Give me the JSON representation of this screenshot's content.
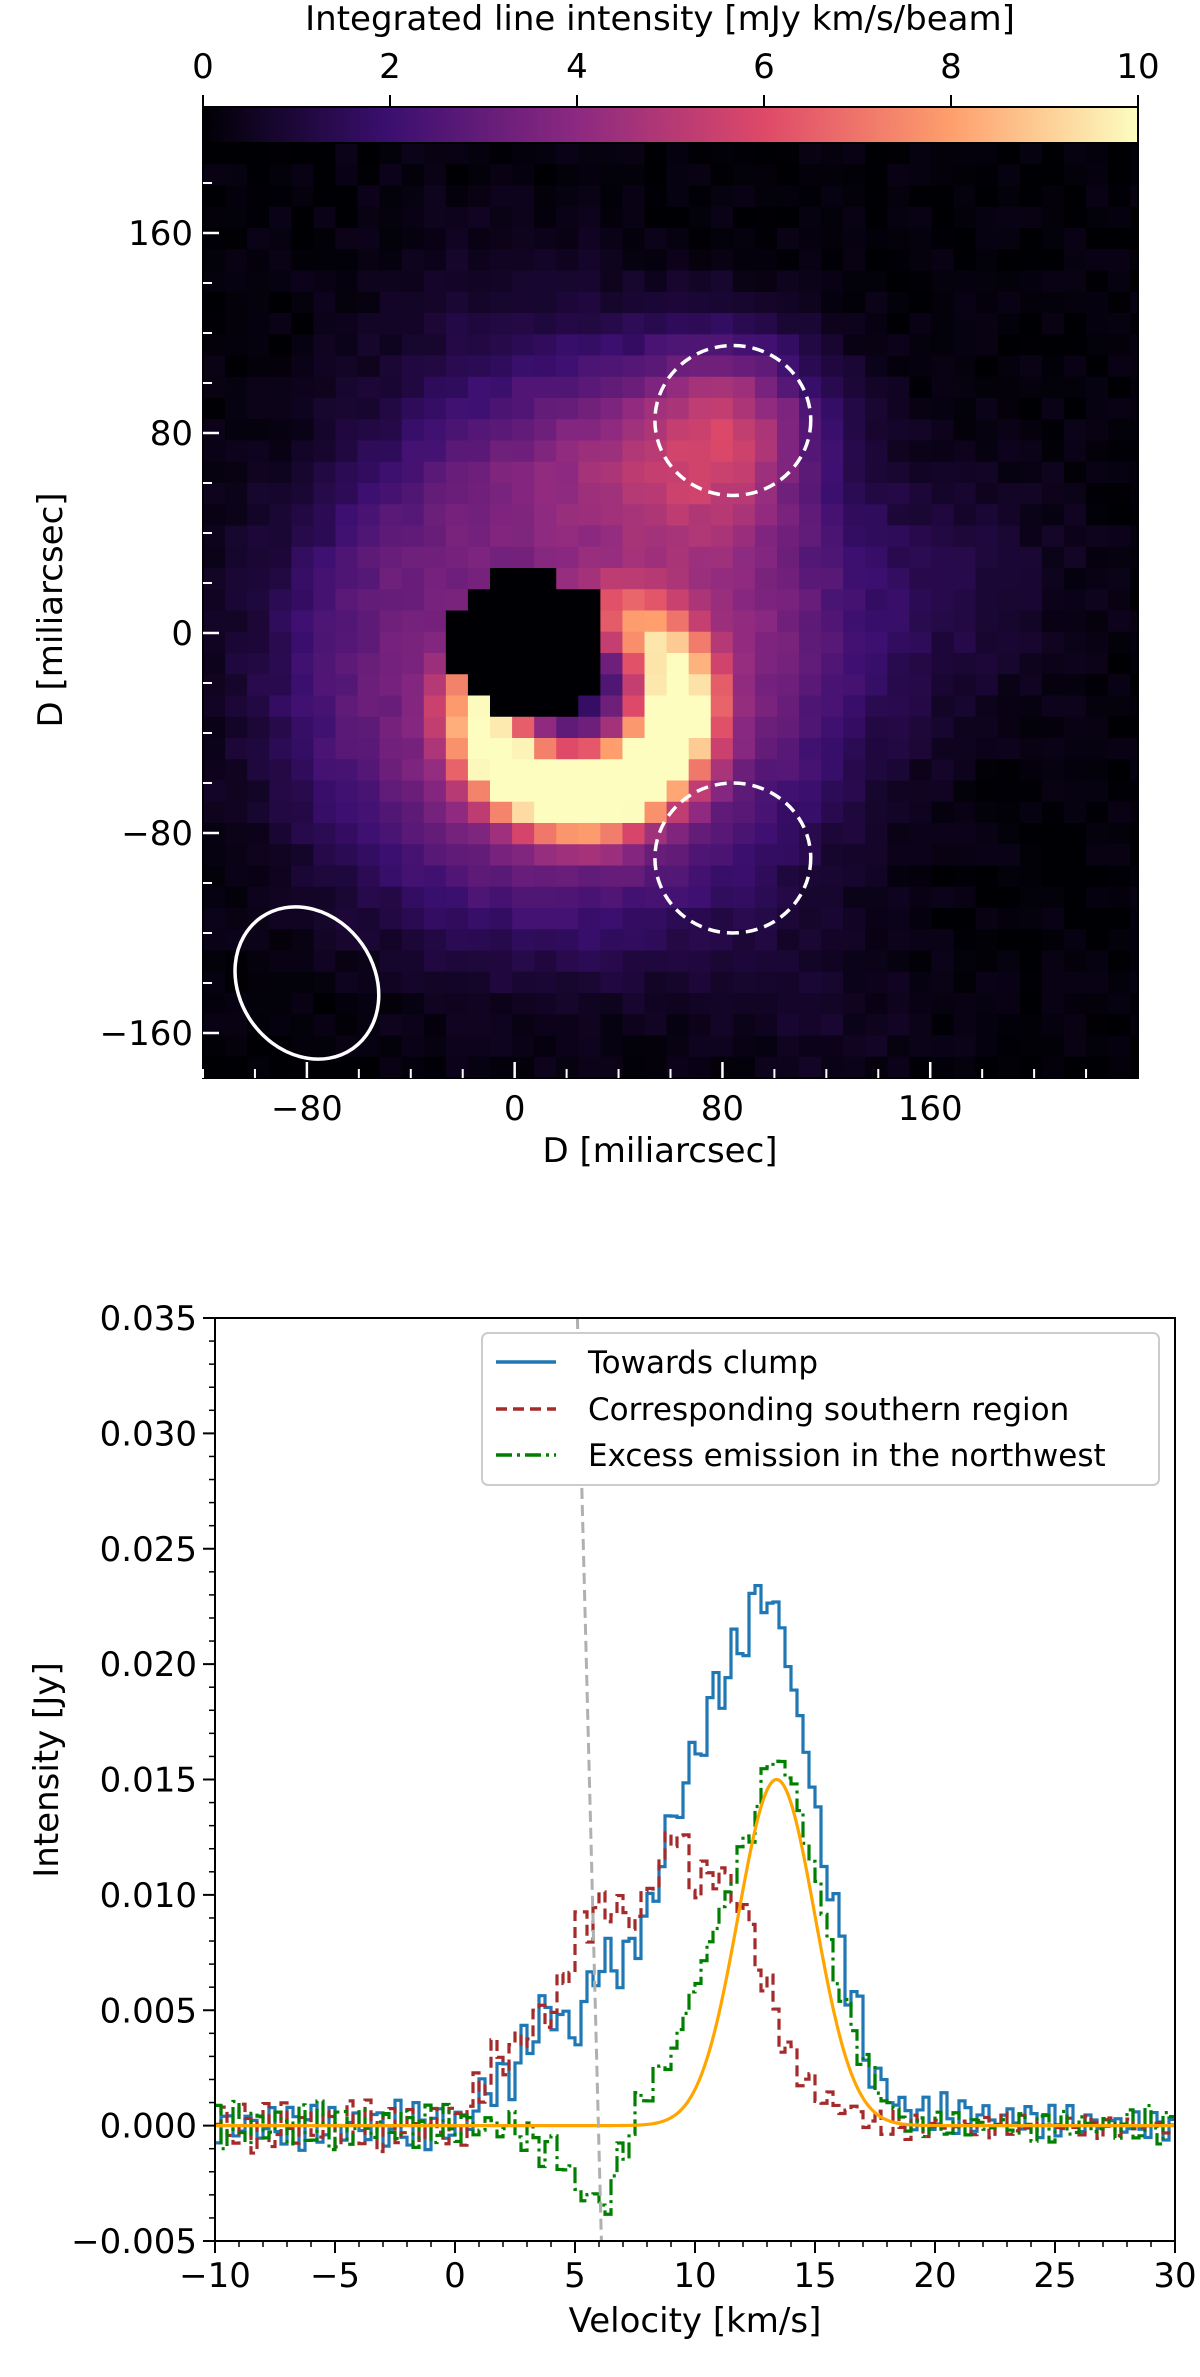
{
  "chart_data": [
    {
      "type": "heatmap",
      "colorbar": {
        "label": "Integrated line intensity [mJy km/s/beam]",
        "range": [
          0,
          10
        ],
        "ticks": [
          "0",
          "2",
          "4",
          "6",
          "8",
          "10"
        ],
        "colormap": [
          "#000004",
          "#3b0f70",
          "#8c2981",
          "#de4968",
          "#fe9f6d",
          "#fcfdbf"
        ]
      },
      "xlabel": "D [miliarcsec]",
      "ylabel": "D [miliarcsec]",
      "xlim": [
        -120,
        240
      ],
      "ylim": [
        -178,
        196
      ],
      "xticks": [
        {
          "value": -80,
          "label": "−80"
        },
        {
          "value": 0,
          "label": "0"
        },
        {
          "value": 80,
          "label": "80"
        },
        {
          "value": 160,
          "label": "160"
        }
      ],
      "yticks": [
        {
          "value": 160,
          "label": "160"
        },
        {
          "value": 80,
          "label": "80"
        },
        {
          "value": 0,
          "label": "0"
        },
        {
          "value": -80,
          "label": "−80"
        },
        {
          "value": -160,
          "label": "−160"
        }
      ],
      "features": {
        "central_hole": {
          "x": 5,
          "y": -5,
          "radius": 30
        },
        "ring": {
          "x": 20,
          "y": -15,
          "peak_intensity": 10
        },
        "clump": {
          "x": 83,
          "y": 85,
          "peak_intensity": 6
        }
      },
      "regions": [
        {
          "shape": "circle",
          "style": "white-dashed",
          "x": 84,
          "y": 85,
          "radius": 30
        },
        {
          "shape": "circle",
          "style": "white-dashed",
          "x": 84,
          "y": -90,
          "radius": 30
        }
      ],
      "beam": {
        "x": -80,
        "y": -140,
        "major": 32,
        "minor": 26,
        "style": "white-solid"
      }
    },
    {
      "type": "line",
      "xlabel": "Velocity [km/s]",
      "ylabel": "Intensity [Jy]",
      "xlim": [
        -10,
        30
      ],
      "ylim": [
        -0.005,
        0.035
      ],
      "xticks": [
        {
          "value": -10,
          "label": "−10"
        },
        {
          "value": -5,
          "label": "−5"
        },
        {
          "value": 0,
          "label": "0"
        },
        {
          "value": 5,
          "label": "5"
        },
        {
          "value": 10,
          "label": "10"
        },
        {
          "value": 15,
          "label": "15"
        },
        {
          "value": 20,
          "label": "20"
        },
        {
          "value": 25,
          "label": "25"
        },
        {
          "value": 30,
          "label": "30"
        }
      ],
      "yticks": [
        {
          "value": -0.005,
          "label": "−0.005"
        },
        {
          "value": 0,
          "label": "0.000"
        },
        {
          "value": 0.005,
          "label": "0.005"
        },
        {
          "value": 0.01,
          "label": "0.010"
        },
        {
          "value": 0.015,
          "label": "0.015"
        },
        {
          "value": 0.02,
          "label": "0.020"
        },
        {
          "value": 0.025,
          "label": "0.025"
        },
        {
          "value": 0.03,
          "label": "0.030"
        },
        {
          "value": 0.035,
          "label": "0.035"
        }
      ],
      "legend": {
        "placement": "top-right"
      },
      "series": [
        {
          "name": "Towards clump",
          "color": "#1f77b4",
          "dash": "solid",
          "step": true,
          "profile": [
            {
              "v": -10,
              "y": 0.0
            },
            {
              "v": 0,
              "y": 0.0
            },
            {
              "v": 2,
              "y": 0.002
            },
            {
              "v": 4,
              "y": 0.005
            },
            {
              "v": 5,
              "y": 0.004
            },
            {
              "v": 6,
              "y": 0.007
            },
            {
              "v": 7,
              "y": 0.007
            },
            {
              "v": 8,
              "y": 0.009
            },
            {
              "v": 9,
              "y": 0.013
            },
            {
              "v": 10,
              "y": 0.016
            },
            {
              "v": 11,
              "y": 0.019
            },
            {
              "v": 12,
              "y": 0.021
            },
            {
              "v": 12.7,
              "y": 0.0232
            },
            {
              "v": 13.5,
              "y": 0.022
            },
            {
              "v": 14.5,
              "y": 0.017
            },
            {
              "v": 15.5,
              "y": 0.011
            },
            {
              "v": 16.5,
              "y": 0.006
            },
            {
              "v": 17.5,
              "y": 0.002
            },
            {
              "v": 19,
              "y": 0.0005
            },
            {
              "v": 30,
              "y": 0.0
            }
          ]
        },
        {
          "name": "Corresponding southern region",
          "color": "#a52a2a",
          "dash": "dashed",
          "step": true,
          "profile": [
            {
              "v": -10,
              "y": 0.0
            },
            {
              "v": 0,
              "y": 0.0
            },
            {
              "v": 2,
              "y": 0.003
            },
            {
              "v": 4,
              "y": 0.005
            },
            {
              "v": 5.5,
              "y": 0.009
            },
            {
              "v": 6.5,
              "y": 0.0095
            },
            {
              "v": 7.5,
              "y": 0.009
            },
            {
              "v": 8.5,
              "y": 0.011
            },
            {
              "v": 9.2,
              "y": 0.013
            },
            {
              "v": 10,
              "y": 0.0105
            },
            {
              "v": 11,
              "y": 0.011
            },
            {
              "v": 12,
              "y": 0.0095
            },
            {
              "v": 13,
              "y": 0.006
            },
            {
              "v": 14,
              "y": 0.003
            },
            {
              "v": 15,
              "y": 0.0015
            },
            {
              "v": 16,
              "y": 0.0008
            },
            {
              "v": 18,
              "y": 0.0
            },
            {
              "v": 30,
              "y": 0.0
            }
          ]
        },
        {
          "name": "Excess emission in the northwest",
          "color": "#007f00",
          "dash": "dashdot",
          "step": true,
          "profile": [
            {
              "v": -10,
              "y": 0.0
            },
            {
              "v": 2,
              "y": 0.0
            },
            {
              "v": 4,
              "y": -0.001
            },
            {
              "v": 5.5,
              "y": -0.003
            },
            {
              "v": 6.3,
              "y": -0.0035
            },
            {
              "v": 7,
              "y": -0.001
            },
            {
              "v": 8,
              "y": 0.0015
            },
            {
              "v": 9,
              "y": 0.003
            },
            {
              "v": 10,
              "y": 0.006
            },
            {
              "v": 11,
              "y": 0.009
            },
            {
              "v": 12,
              "y": 0.012
            },
            {
              "v": 13.3,
              "y": 0.016
            },
            {
              "v": 14,
              "y": 0.015
            },
            {
              "v": 15,
              "y": 0.011
            },
            {
              "v": 16,
              "y": 0.006
            },
            {
              "v": 17,
              "y": 0.003
            },
            {
              "v": 18,
              "y": 0.001
            },
            {
              "v": 19,
              "y": 0.0
            },
            {
              "v": 30,
              "y": 0.0
            }
          ]
        },
        {
          "name": "",
          "role": "gaussian-fit",
          "color": "#ffa500",
          "dash": "solid",
          "gaussian": {
            "amplitude": 0.015,
            "center": 13.4,
            "sigma": 1.6
          }
        },
        {
          "name": "",
          "role": "reference-line",
          "color": "#b0b0b0",
          "dash": "dashed",
          "points": [
            {
              "x": 5.1,
              "y": 0.035
            },
            {
              "x": 6.1,
              "y": -0.005
            }
          ]
        }
      ]
    }
  ]
}
